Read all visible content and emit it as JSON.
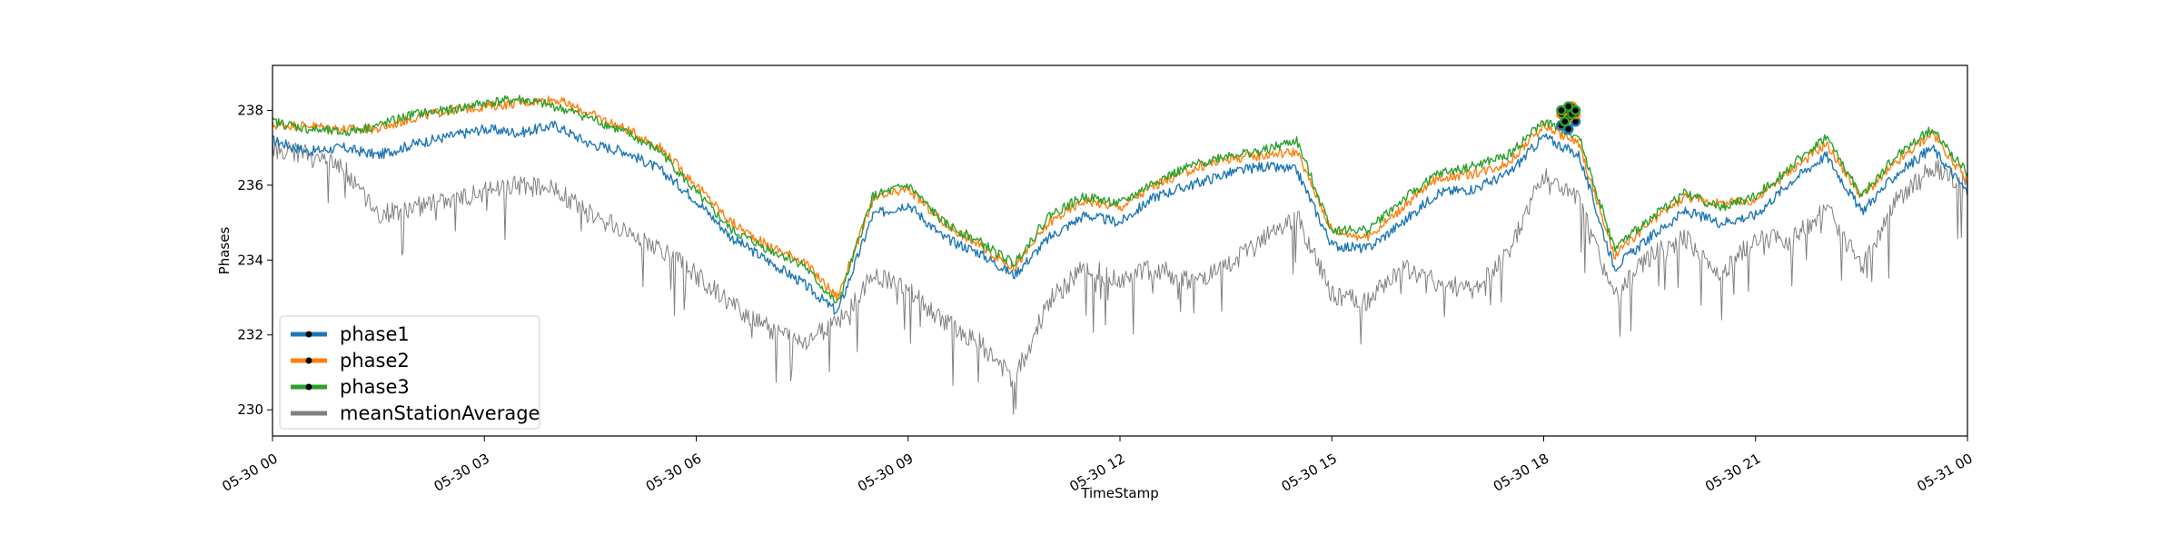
{
  "chart_data": {
    "type": "line",
    "title": "",
    "xlabel": "TimeStamp",
    "ylabel": "Phases",
    "x_range": [
      "05-30 00",
      "05-31 00"
    ],
    "ylim": [
      229.3,
      239.2
    ],
    "grid": false,
    "legend_position": "lower-left",
    "x_ticks": [
      {
        "hour": 0,
        "label": "05-30 00"
      },
      {
        "hour": 3,
        "label": "05-30 03"
      },
      {
        "hour": 6,
        "label": "05-30 06"
      },
      {
        "hour": 9,
        "label": "05-30 09"
      },
      {
        "hour": 12,
        "label": "05-30 12"
      },
      {
        "hour": 15,
        "label": "05-30 15"
      },
      {
        "hour": 18,
        "label": "05-30 18"
      },
      {
        "hour": 21,
        "label": "05-30 21"
      },
      {
        "hour": 24,
        "label": "05-31 00"
      }
    ],
    "y_ticks": [
      230,
      232,
      234,
      236,
      238
    ],
    "x": [
      0,
      0.5,
      1,
      1.5,
      2,
      2.5,
      3,
      3.5,
      4,
      4.5,
      5,
      5.5,
      6,
      6.5,
      7,
      7.5,
      8,
      8.5,
      9,
      9.5,
      10,
      10.5,
      11,
      11.5,
      12,
      12.5,
      13,
      13.5,
      14,
      14.5,
      15,
      15.5,
      16,
      16.5,
      17,
      17.5,
      18,
      18.5,
      19,
      19.5,
      20,
      20.5,
      21,
      21.5,
      22,
      22.5,
      23,
      23.5,
      24
    ],
    "series": [
      {
        "name": "phase1",
        "color": "#1f77b4",
        "values": [
          237.2,
          236.9,
          237.0,
          236.8,
          237.1,
          237.3,
          237.5,
          237.4,
          237.6,
          237.1,
          236.9,
          236.4,
          235.6,
          234.6,
          234.0,
          233.4,
          232.6,
          235.2,
          235.5,
          234.6,
          234.2,
          233.6,
          234.6,
          235.2,
          235.0,
          235.7,
          236.0,
          236.3,
          236.5,
          236.4,
          234.4,
          234.3,
          235.0,
          235.8,
          235.9,
          236.3,
          237.3,
          236.8,
          233.8,
          234.6,
          235.3,
          235.0,
          235.2,
          236.1,
          236.8,
          235.3,
          236.3,
          237.0,
          235.8
        ]
      },
      {
        "name": "phase2",
        "color": "#ff7f0e",
        "values": [
          237.6,
          237.6,
          237.5,
          237.5,
          237.8,
          238.0,
          238.1,
          238.2,
          238.3,
          237.9,
          237.5,
          237.0,
          236.0,
          235.0,
          234.4,
          234.0,
          233.0,
          235.6,
          235.9,
          235.0,
          234.4,
          233.8,
          235.0,
          235.6,
          235.4,
          236.0,
          236.4,
          236.7,
          236.8,
          236.9,
          234.8,
          234.6,
          235.4,
          236.2,
          236.3,
          236.6,
          237.6,
          237.1,
          234.1,
          235.0,
          235.7,
          235.5,
          235.6,
          236.4,
          237.1,
          235.7,
          236.6,
          237.4,
          236.1
        ]
      },
      {
        "name": "phase3",
        "color": "#2ca02c",
        "values": [
          237.7,
          237.5,
          237.4,
          237.6,
          237.9,
          238.0,
          238.2,
          238.3,
          238.1,
          237.8,
          237.4,
          236.9,
          235.8,
          234.8,
          234.3,
          233.9,
          232.8,
          235.7,
          236.0,
          235.0,
          234.5,
          233.9,
          235.2,
          235.7,
          235.5,
          236.1,
          236.5,
          236.8,
          236.9,
          237.2,
          234.8,
          234.8,
          235.6,
          236.3,
          236.5,
          236.8,
          237.7,
          237.3,
          234.3,
          235.1,
          235.8,
          235.4,
          235.7,
          236.5,
          237.3,
          235.7,
          236.8,
          237.5,
          236.3
        ]
      },
      {
        "name": "meanStationAverage",
        "color": "#808080",
        "values": [
          237.0,
          236.8,
          236.5,
          235.2,
          235.4,
          235.6,
          235.8,
          236.0,
          235.9,
          235.2,
          234.8,
          234.3,
          233.6,
          232.8,
          232.2,
          231.8,
          232.3,
          233.6,
          233.2,
          232.4,
          231.8,
          230.8,
          232.9,
          233.8,
          233.5,
          233.8,
          233.4,
          233.8,
          234.5,
          235.2,
          233.1,
          232.9,
          233.8,
          233.4,
          233.2,
          234.2,
          236.3,
          235.6,
          233.0,
          234.1,
          234.6,
          233.6,
          234.6,
          234.5,
          235.4,
          233.8,
          235.6,
          236.5,
          236.0
        ]
      }
    ],
    "markers": {
      "x": [
        18.25,
        18.3,
        18.35,
        18.4,
        18.45
      ],
      "phase1": [
        237.6,
        237.8,
        237.5,
        237.9,
        237.7
      ],
      "phase2": [
        237.9,
        238.0,
        237.8,
        238.1,
        237.9
      ],
      "phase3": [
        238.0,
        237.7,
        238.1,
        237.9,
        238.0
      ]
    }
  }
}
